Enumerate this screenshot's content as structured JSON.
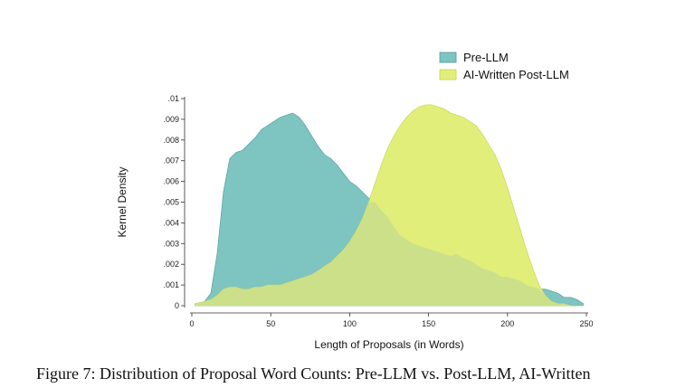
{
  "caption": "Figure 7: Distribution of Proposal Word Counts: Pre-LLM vs. Post-LLM, AI-Written",
  "colors": {
    "pre_llm_fill": "#7ec4c1",
    "pre_llm_stroke": "#4a9e9b",
    "ai_post_fill": "#e2ee7a",
    "ai_post_stroke": "#c3d24a",
    "overlap_fill": "#cce08a"
  },
  "chart_data": {
    "type": "area",
    "title": "",
    "xlabel": "Length of Proposals (in Words)",
    "ylabel": "Kernel Density",
    "xlim": [
      0,
      250
    ],
    "ylim": [
      0,
      0.01
    ],
    "x_ticks": [
      0,
      50,
      100,
      150,
      200,
      250
    ],
    "x_tick_labels": [
      "0",
      "50",
      "100",
      "150",
      "200",
      "250"
    ],
    "y_ticks": [
      0,
      0.001,
      0.002,
      0.003,
      0.004,
      0.005,
      0.006,
      0.007,
      0.008,
      0.009,
      0.01
    ],
    "y_tick_labels": [
      "0",
      ".001",
      ".002",
      ".003",
      ".004",
      ".005",
      ".006",
      ".007",
      ".008",
      ".009",
      ".01"
    ],
    "grid": false,
    "legend": "top-right",
    "series": [
      {
        "name": "Pre-LLM",
        "x": [
          2,
          8,
          12,
          16,
          20,
          24,
          28,
          32,
          36,
          40,
          44,
          48,
          52,
          56,
          60,
          64,
          68,
          72,
          76,
          80,
          84,
          88,
          92,
          96,
          100,
          104,
          108,
          112,
          116,
          120,
          124,
          128,
          132,
          136,
          140,
          144,
          148,
          152,
          156,
          160,
          164,
          168,
          172,
          176,
          180,
          184,
          188,
          192,
          196,
          200,
          204,
          208,
          212,
          216,
          220,
          224,
          228,
          232,
          236,
          240,
          244,
          248
        ],
        "y": [
          0.0001,
          0.0002,
          0.0006,
          0.0025,
          0.0055,
          0.0071,
          0.0074,
          0.0075,
          0.0078,
          0.0081,
          0.0085,
          0.0087,
          0.0089,
          0.0091,
          0.0092,
          0.0093,
          0.0091,
          0.0087,
          0.0082,
          0.0077,
          0.0073,
          0.0071,
          0.0068,
          0.0064,
          0.006,
          0.0058,
          0.0055,
          0.0052,
          0.005,
          0.0046,
          0.0043,
          0.0038,
          0.0034,
          0.0032,
          0.003,
          0.0029,
          0.0028,
          0.0027,
          0.0026,
          0.0025,
          0.0024,
          0.0025,
          0.0023,
          0.0022,
          0.002,
          0.0018,
          0.0017,
          0.0016,
          0.0014,
          0.0014,
          0.0013,
          0.0012,
          0.001,
          0.0009,
          0.0008,
          0.0008,
          0.0007,
          0.0006,
          0.0004,
          0.0004,
          0.0003,
          0.0001
        ]
      },
      {
        "name": "AI-Written Post-LLM",
        "x": [
          2,
          8,
          12,
          16,
          20,
          24,
          28,
          32,
          36,
          40,
          44,
          48,
          52,
          56,
          60,
          64,
          68,
          72,
          76,
          80,
          84,
          88,
          92,
          96,
          100,
          104,
          108,
          112,
          116,
          120,
          124,
          128,
          132,
          136,
          140,
          144,
          148,
          152,
          156,
          160,
          164,
          168,
          172,
          176,
          180,
          184,
          188,
          192,
          196,
          200,
          204,
          208,
          212,
          216,
          220,
          224,
          228,
          232,
          236,
          240,
          244,
          248
        ],
        "y": [
          0.0001,
          0.0002,
          0.0003,
          0.0005,
          0.0008,
          0.0009,
          0.0009,
          0.0008,
          0.0008,
          0.0009,
          0.0009,
          0.001,
          0.001,
          0.001,
          0.0011,
          0.0012,
          0.0013,
          0.0014,
          0.0015,
          0.0017,
          0.0019,
          0.0021,
          0.0024,
          0.0027,
          0.0031,
          0.0036,
          0.0042,
          0.005,
          0.0059,
          0.0068,
          0.0076,
          0.0082,
          0.0087,
          0.0091,
          0.0094,
          0.0096,
          0.0097,
          0.0097,
          0.0096,
          0.0095,
          0.0093,
          0.0092,
          0.0091,
          0.0089,
          0.0087,
          0.0083,
          0.0078,
          0.0073,
          0.0066,
          0.0057,
          0.0047,
          0.0037,
          0.0027,
          0.0018,
          0.001,
          0.0005,
          0.0002,
          0.0001,
          0.0001,
          0.0,
          0.0,
          0.0
        ]
      }
    ]
  }
}
